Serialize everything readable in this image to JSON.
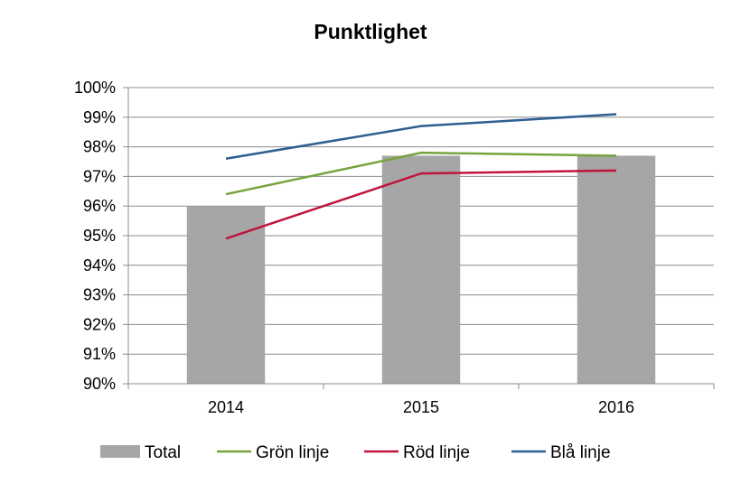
{
  "chart_data": {
    "type": "bar",
    "title": "Punktlighet",
    "categories": [
      "2014",
      "2015",
      "2016"
    ],
    "ylim": [
      90,
      100
    ],
    "y_ticks": [
      "90%",
      "91%",
      "92%",
      "93%",
      "94%",
      "95%",
      "96%",
      "97%",
      "98%",
      "99%",
      "100%"
    ],
    "grid": true,
    "legend_position": "bottom",
    "series": [
      {
        "name": "Total",
        "kind": "bar",
        "color": "#a6a6a6",
        "values": [
          96.0,
          97.7,
          97.7
        ]
      },
      {
        "name": "Grön linje",
        "kind": "line",
        "color": "#77a33e",
        "values": [
          96.4,
          97.8,
          97.7
        ]
      },
      {
        "name": "Röd linje",
        "kind": "line",
        "color": "#c0143c",
        "values": [
          94.9,
          97.1,
          97.2
        ]
      },
      {
        "name": "Blå linje",
        "kind": "line",
        "color": "#2e5f92",
        "values": [
          97.6,
          98.7,
          99.1
        ]
      }
    ]
  }
}
